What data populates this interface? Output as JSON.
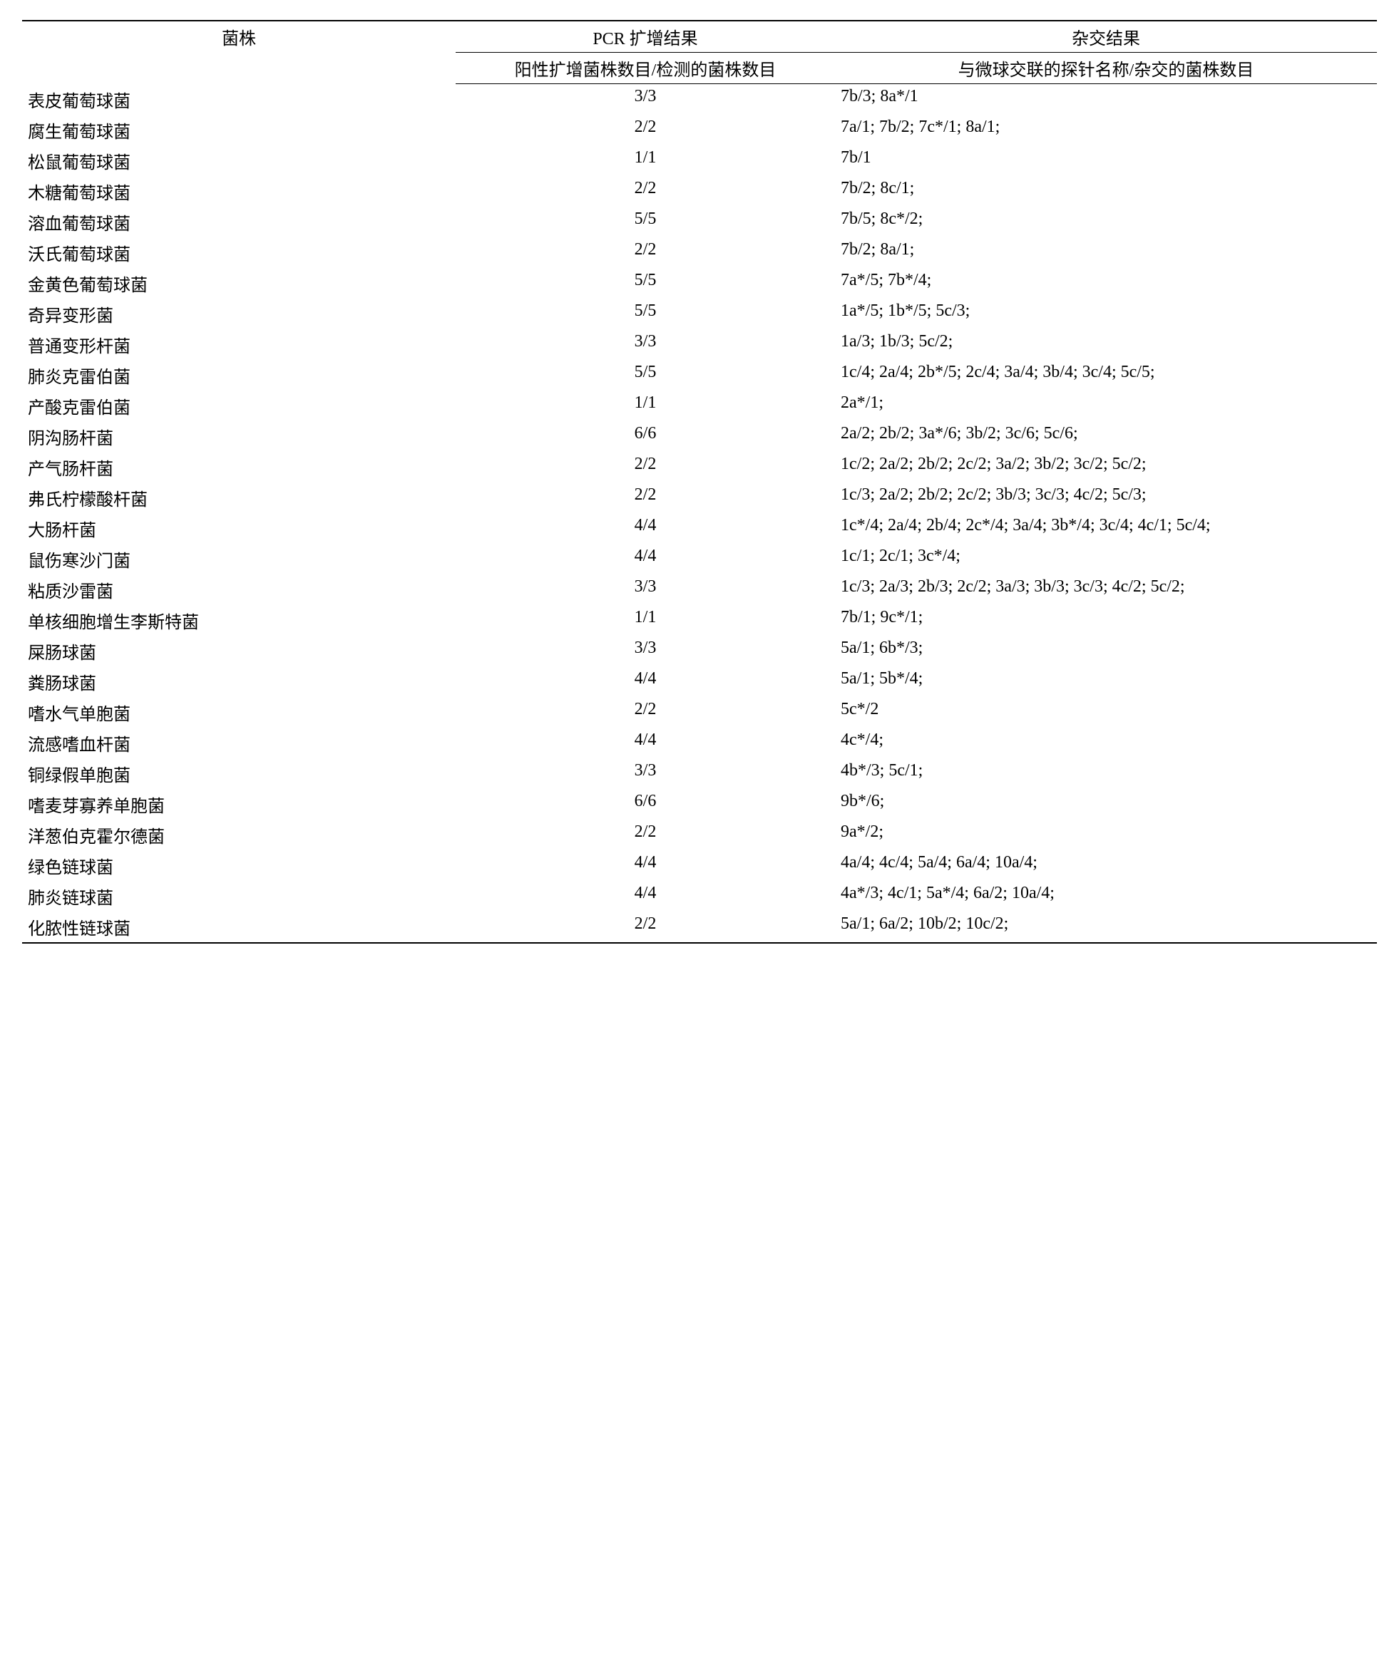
{
  "table": {
    "headers": {
      "strain": "菌株",
      "pcr": "PCR 扩增结果",
      "hybrid": "杂交结果",
      "pcr_sub": "阳性扩增菌株数目/检测的菌株数目",
      "hybrid_sub": "与微球交联的探针名称/杂交的菌株数目"
    },
    "rows": [
      {
        "strain": "表皮葡萄球菌",
        "pcr": "3/3",
        "hybrid": "7b/3; 8a*/1"
      },
      {
        "strain": "腐生葡萄球菌",
        "pcr": "2/2",
        "hybrid": "7a/1; 7b/2; 7c*/1; 8a/1;"
      },
      {
        "strain": "松鼠葡萄球菌",
        "pcr": "1/1",
        "hybrid": "7b/1"
      },
      {
        "strain": "木糖葡萄球菌",
        "pcr": "2/2",
        "hybrid": "7b/2; 8c/1;"
      },
      {
        "strain": "溶血葡萄球菌",
        "pcr": "5/5",
        "hybrid": "7b/5; 8c*/2;"
      },
      {
        "strain": "沃氏葡萄球菌",
        "pcr": "2/2",
        "hybrid": "7b/2; 8a/1;"
      },
      {
        "strain": "金黄色葡萄球菌",
        "pcr": "5/5",
        "hybrid": "7a*/5; 7b*/4;"
      },
      {
        "strain": "奇异变形菌",
        "pcr": "5/5",
        "hybrid": "1a*/5; 1b*/5; 5c/3;"
      },
      {
        "strain": "普通变形杆菌",
        "pcr": "3/3",
        "hybrid": "1a/3; 1b/3; 5c/2;"
      },
      {
        "strain": "肺炎克雷伯菌",
        "pcr": "5/5",
        "hybrid": "1c/4; 2a/4; 2b*/5; 2c/4; 3a/4; 3b/4; 3c/4; 5c/5;"
      },
      {
        "strain": "产酸克雷伯菌",
        "pcr": "1/1",
        "hybrid": "2a*/1;"
      },
      {
        "strain": "阴沟肠杆菌",
        "pcr": "6/6",
        "hybrid": "2a/2; 2b/2; 3a*/6; 3b/2; 3c/6; 5c/6;"
      },
      {
        "strain": "产气肠杆菌",
        "pcr": "2/2",
        "hybrid": "1c/2; 2a/2; 2b/2; 2c/2; 3a/2; 3b/2; 3c/2; 5c/2;"
      },
      {
        "strain": "弗氏柠檬酸杆菌",
        "pcr": "2/2",
        "hybrid": "1c/3; 2a/2; 2b/2; 2c/2; 3b/3; 3c/3; 4c/2; 5c/3;"
      },
      {
        "strain": "大肠杆菌",
        "pcr": "4/4",
        "hybrid": "1c*/4; 2a/4; 2b/4; 2c*/4; 3a/4; 3b*/4; 3c/4; 4c/1; 5c/4;"
      },
      {
        "strain": "鼠伤寒沙门菌",
        "pcr": "4/4",
        "hybrid": "1c/1; 2c/1; 3c*/4;"
      },
      {
        "strain": "粘质沙雷菌",
        "pcr": "3/3",
        "hybrid": "1c/3; 2a/3; 2b/3; 2c/2; 3a/3; 3b/3; 3c/3; 4c/2; 5c/2;"
      },
      {
        "strain": "单核细胞增生李斯特菌",
        "pcr": "1/1",
        "hybrid": "7b/1; 9c*/1;"
      },
      {
        "strain": "屎肠球菌",
        "pcr": "3/3",
        "hybrid": "5a/1; 6b*/3;"
      },
      {
        "strain": "粪肠球菌",
        "pcr": "4/4",
        "hybrid": "5a/1; 5b*/4;"
      },
      {
        "strain": "嗜水气单胞菌",
        "pcr": "2/2",
        "hybrid": "5c*/2"
      },
      {
        "strain": "流感嗜血杆菌",
        "pcr": "4/4",
        "hybrid": "4c*/4;"
      },
      {
        "strain": "铜绿假单胞菌",
        "pcr": "3/3",
        "hybrid": "4b*/3; 5c/1;"
      },
      {
        "strain": "嗜麦芽寡养单胞菌",
        "pcr": "6/6",
        "hybrid": "9b*/6;"
      },
      {
        "strain": "洋葱伯克霍尔德菌",
        "pcr": "2/2",
        "hybrid": "9a*/2;"
      },
      {
        "strain": "绿色链球菌",
        "pcr": "4/4",
        "hybrid": "4a/4; 4c/4; 5a/4; 6a/4; 10a/4;"
      },
      {
        "strain": "肺炎链球菌",
        "pcr": "4/4",
        "hybrid": "4a*/3; 4c/1; 5a*/4; 6a/2; 10a/4;"
      },
      {
        "strain": "化脓性链球菌",
        "pcr": "2/2",
        "hybrid": "5a/1; 6a/2; 10b/2; 10c/2;"
      }
    ]
  }
}
